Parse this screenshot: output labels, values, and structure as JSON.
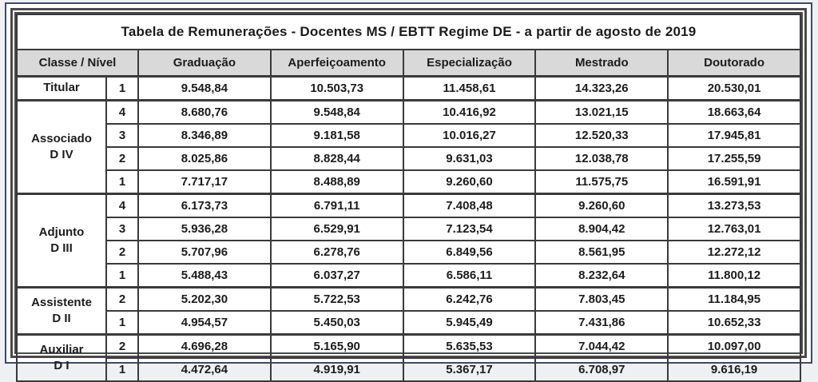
{
  "title": "Tabela de Remunerações  -  Docentes MS / EBTT Regime DE - a partir de agosto de 2019",
  "colors": {
    "page_background": "#eff0f3",
    "frame_border": "#3c4a6e",
    "table_border": "#4a4a4a",
    "cell_border": "#3a3a3a",
    "header_background": "#d9d9d9",
    "text": "#1c1c1c"
  },
  "table": {
    "headers": [
      "Classe / Nível",
      "Graduação",
      "Aperfeiçoamento",
      "Especialização",
      "Mestrado",
      "Doutorado"
    ],
    "groups": [
      {
        "classe_line1": "Titular",
        "classe_line2": "",
        "rows": [
          {
            "nivel": "1",
            "values": [
              "9.548,84",
              "10.503,73",
              "11.458,61",
              "14.323,26",
              "20.530,01"
            ]
          }
        ]
      },
      {
        "classe_line1": "Associado",
        "classe_line2": "D IV",
        "rows": [
          {
            "nivel": "4",
            "values": [
              "8.680,76",
              "9.548,84",
              "10.416,92",
              "13.021,15",
              "18.663,64"
            ]
          },
          {
            "nivel": "3",
            "values": [
              "8.346,89",
              "9.181,58",
              "10.016,27",
              "12.520,33",
              "17.945,81"
            ]
          },
          {
            "nivel": "2",
            "values": [
              "8.025,86",
              "8.828,44",
              "9.631,03",
              "12.038,78",
              "17.255,59"
            ]
          },
          {
            "nivel": "1",
            "values": [
              "7.717,17",
              "8.488,89",
              "9.260,60",
              "11.575,75",
              "16.591,91"
            ]
          }
        ]
      },
      {
        "classe_line1": "Adjunto",
        "classe_line2": "D III",
        "rows": [
          {
            "nivel": "4",
            "values": [
              "6.173,73",
              "6.791,11",
              "7.408,48",
              "9.260,60",
              "13.273,53"
            ]
          },
          {
            "nivel": "3",
            "values": [
              "5.936,28",
              "6.529,91",
              "7.123,54",
              "8.904,42",
              "12.763,01"
            ]
          },
          {
            "nivel": "2",
            "values": [
              "5.707,96",
              "6.278,76",
              "6.849,56",
              "8.561,95",
              "12.272,12"
            ]
          },
          {
            "nivel": "1",
            "values": [
              "5.488,43",
              "6.037,27",
              "6.586,11",
              "8.232,64",
              "11.800,12"
            ]
          }
        ]
      },
      {
        "classe_line1": "Assistente",
        "classe_line2": "D II",
        "rows": [
          {
            "nivel": "2",
            "values": [
              "5.202,30",
              "5.722,53",
              "6.242,76",
              "7.803,45",
              "11.184,95"
            ]
          },
          {
            "nivel": "1",
            "values": [
              "4.954,57",
              "5.450,03",
              "5.945,49",
              "7.431,86",
              "10.652,33"
            ]
          }
        ]
      },
      {
        "classe_line1": "Auxiliar",
        "classe_line2": "D I",
        "rows": [
          {
            "nivel": "2",
            "values": [
              "4.696,28",
              "5.165,90",
              "5.635,53",
              "7.044,42",
              "10.097,00"
            ]
          },
          {
            "nivel": "1",
            "values": [
              "4.472,64",
              "4.919,91",
              "5.367,17",
              "6.708,97",
              "9.616,19"
            ]
          }
        ]
      }
    ]
  }
}
